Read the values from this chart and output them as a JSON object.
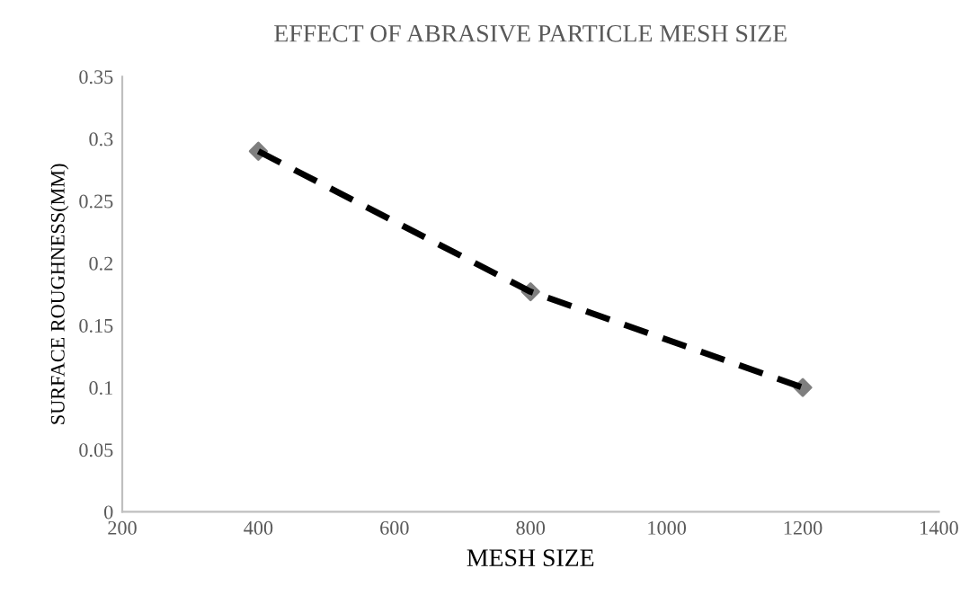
{
  "chart_data": {
    "type": "scatter",
    "title": "EFFECT OF ABRASIVE PARTICLE MESH SIZE",
    "xlabel": "MESH SIZE",
    "ylabel": "SURFACE ROUGHNESS(MM)",
    "series": [
      {
        "color": "#7f7f7f",
        "x": [
          400,
          800,
          1200
        ],
        "values": [
          0.29,
          0.177,
          0.1
        ],
        "marker": "diamond"
      },
      {
        "type": "line",
        "color": "#000000",
        "x": [
          400,
          800,
          1200
        ],
        "values": [
          0.29,
          0.177,
          0.1
        ],
        "line_style": "dashed",
        "marker": "none"
      }
    ],
    "xlim": [
      200,
      1400
    ],
    "xticks": [
      200,
      400,
      600,
      800,
      1000,
      1200,
      1400
    ],
    "ylim": [
      0,
      0.35
    ],
    "yticks": [
      0,
      0.05,
      0.1,
      0.15,
      0.2,
      0.25,
      0.3,
      0.35
    ],
    "grid": false,
    "legend": false
  }
}
